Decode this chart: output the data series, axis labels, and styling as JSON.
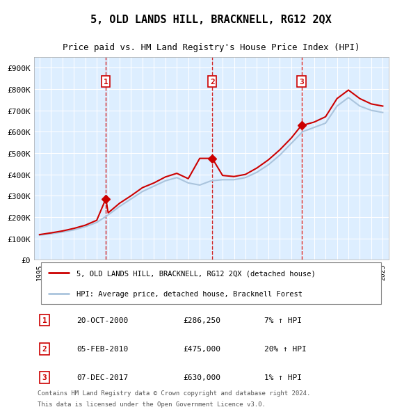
{
  "title": "5, OLD LANDS HILL, BRACKNELL, RG12 2QX",
  "subtitle": "Price paid vs. HM Land Registry's House Price Index (HPI)",
  "footer1": "Contains HM Land Registry data © Crown copyright and database right 2024.",
  "footer2": "This data is licensed under the Open Government Licence v3.0.",
  "legend_label_red": "5, OLD LANDS HILL, BRACKNELL, RG12 2QX (detached house)",
  "legend_label_blue": "HPI: Average price, detached house, Bracknell Forest",
  "transactions": [
    {
      "num": 1,
      "date": "20-OCT-2000",
      "price": 286250,
      "hpi_pct": "7%",
      "direction": "↑"
    },
    {
      "num": 2,
      "date": "05-FEB-2010",
      "price": 475000,
      "hpi_pct": "20%",
      "direction": "↑"
    },
    {
      "num": 3,
      "date": "07-DEC-2017",
      "price": 630000,
      "hpi_pct": "1%",
      "direction": "↑"
    }
  ],
  "transaction_years": [
    2000.8,
    2010.1,
    2017.9
  ],
  "transaction_prices": [
    286250,
    475000,
    630000
  ],
  "ylim": [
    0,
    950000
  ],
  "yticks": [
    0,
    100000,
    200000,
    300000,
    400000,
    500000,
    600000,
    700000,
    800000,
    900000
  ],
  "ytick_labels": [
    "£0",
    "£100K",
    "£200K",
    "£300K",
    "£400K",
    "£500K",
    "£600K",
    "£700K",
    "£800K",
    "£900K"
  ],
  "xlim_start": 1994.5,
  "xlim_end": 2025.5,
  "red_color": "#cc0000",
  "blue_color": "#aac4dd",
  "dashed_red": "#cc0000",
  "bg_plot": "#ddeeff",
  "bg_figure": "#ffffff",
  "grid_color": "#ffffff",
  "hpi_years": [
    1995,
    1996,
    1997,
    1998,
    1999,
    2000,
    2001,
    2002,
    2003,
    2004,
    2005,
    2006,
    2007,
    2008,
    2009,
    2010,
    2011,
    2012,
    2013,
    2014,
    2015,
    2016,
    2017,
    2018,
    2019,
    2020,
    2021,
    2022,
    2023,
    2024,
    2025
  ],
  "hpi_values": [
    115000,
    122000,
    130000,
    140000,
    155000,
    175000,
    210000,
    250000,
    285000,
    320000,
    345000,
    370000,
    385000,
    360000,
    350000,
    370000,
    375000,
    375000,
    385000,
    410000,
    445000,
    490000,
    545000,
    600000,
    620000,
    640000,
    720000,
    760000,
    720000,
    700000,
    690000
  ],
  "red_years": [
    1995,
    1996,
    1997,
    1998,
    1999,
    2000,
    2000.8,
    2001,
    2002,
    2003,
    2004,
    2005,
    2006,
    2007,
    2008,
    2009,
    2010,
    2010.1,
    2011,
    2012,
    2013,
    2014,
    2015,
    2016,
    2017,
    2017.9,
    2018,
    2019,
    2020,
    2021,
    2022,
    2023,
    2024,
    2025
  ],
  "red_values": [
    118000,
    126000,
    135000,
    147000,
    162000,
    185000,
    286250,
    220000,
    265000,
    300000,
    338000,
    360000,
    388000,
    405000,
    380000,
    475000,
    475000,
    475000,
    395000,
    390000,
    400000,
    430000,
    468000,
    515000,
    570000,
    630000,
    630000,
    645000,
    670000,
    755000,
    795000,
    755000,
    730000,
    720000
  ]
}
